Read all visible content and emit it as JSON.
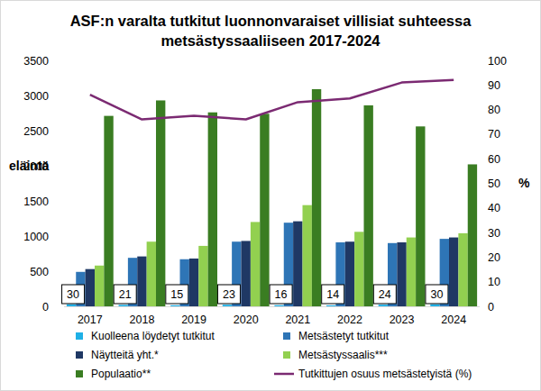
{
  "chart_data": {
    "type": "bar",
    "title": "ASF:n varalta tutkitut luonnonvaraiset villisiat suhteessa\nmetsästyssaaliiseen 2017-2024",
    "y_label": "eläintä",
    "y2_label": "%",
    "categories": [
      "2017",
      "2018",
      "2019",
      "2020",
      "2021",
      "2022",
      "2023",
      "2024"
    ],
    "ylim": [
      0,
      3500
    ],
    "yticks": [
      0,
      500,
      1000,
      1500,
      2000,
      2500,
      3000,
      3500
    ],
    "y2lim": [
      0,
      100
    ],
    "y2ticks": [
      0,
      10,
      20,
      30,
      40,
      50,
      60,
      70,
      80,
      90,
      100
    ],
    "grid": false,
    "legend": "bottom",
    "series": [
      {
        "name": "Kuolleena löydetyt tutkitut",
        "type": "bar",
        "color": "#1fb0e6",
        "data_labels": true,
        "values": [
          30,
          21,
          15,
          23,
          16,
          14,
          24,
          30
        ]
      },
      {
        "name": "Metsästetyt tutkitut",
        "type": "bar",
        "color": "#2e75b6",
        "values": [
          490,
          690,
          670,
          920,
          1190,
          910,
          900,
          960
        ]
      },
      {
        "name": "Näytteitä yht.*",
        "type": "bar",
        "color": "#1f3864",
        "values": [
          530,
          710,
          680,
          930,
          1210,
          920,
          910,
          980
        ]
      },
      {
        "name": "Metsästyssaalis***",
        "type": "bar",
        "color": "#92d050",
        "values": [
          580,
          920,
          860,
          1200,
          1440,
          1060,
          980,
          1040
        ]
      },
      {
        "name": "Populaatio**",
        "type": "bar",
        "color": "#3a7d22",
        "values": [
          2710,
          2930,
          2760,
          2740,
          3090,
          2860,
          2560,
          2020
        ]
      },
      {
        "name": "Tutkittujen osuus metsästetyistä (%)",
        "type": "line",
        "axis": "y2",
        "color": "#7b2a72",
        "line_style": "solid",
        "values": [
          86,
          76,
          77.5,
          76,
          83,
          84.5,
          91,
          92
        ]
      }
    ]
  }
}
